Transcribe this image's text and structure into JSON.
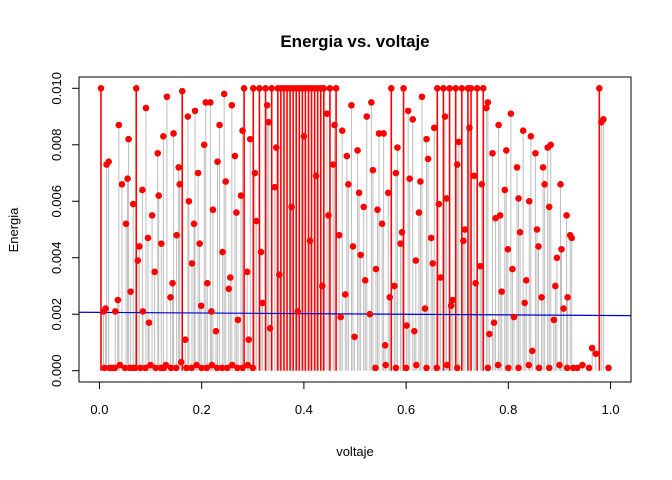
{
  "chart_data": {
    "type": "scatter",
    "title": "Energia vs. voltaje",
    "xlabel": "voltaje",
    "ylabel": "Energia",
    "xlim": [
      -0.04,
      1.04
    ],
    "ylim": [
      -0.0004,
      0.0104
    ],
    "x_ticks": [
      "0.0",
      "0.2",
      "0.4",
      "0.6",
      "0.8",
      "1.0"
    ],
    "y_ticks": [
      "0.000",
      "0.002",
      "0.004",
      "0.006",
      "0.008",
      "0.010"
    ],
    "grid": false,
    "legend": "none",
    "point_color": "#ff0000",
    "stem_color": "#bebebe",
    "saturated_stem_color": "#ff0000",
    "fit_line_color": "#0000cc",
    "fit_line": {
      "x": [
        -0.04,
        1.04
      ],
      "y": [
        0.00207,
        0.00195
      ]
    },
    "points": [
      [
        0.003,
        0.01
      ],
      [
        0.012,
        0.0022
      ],
      [
        0.014,
        0.0073
      ],
      [
        0.018,
        0.0074
      ],
      [
        0.025,
        0.0001
      ],
      [
        0.031,
        0.0021
      ],
      [
        0.038,
        0.0087
      ],
      [
        0.044,
        0.0066
      ],
      [
        0.052,
        0.0052
      ],
      [
        0.057,
        0.0082
      ],
      [
        0.061,
        0.0028
      ],
      [
        0.067,
        0.0001
      ],
      [
        0.072,
        0.01
      ],
      [
        0.078,
        0.0044
      ],
      [
        0.084,
        0.0064
      ],
      [
        0.091,
        0.0093
      ],
      [
        0.097,
        0.0017
      ],
      [
        0.103,
        0.0055
      ],
      [
        0.108,
        0.0035
      ],
      [
        0.114,
        0.0077
      ],
      [
        0.121,
        0.0045
      ],
      [
        0.126,
        0.0001
      ],
      [
        0.132,
        0.0097
      ],
      [
        0.139,
        0.0026
      ],
      [
        0.145,
        0.0084
      ],
      [
        0.151,
        0.0048
      ],
      [
        0.157,
        0.0066
      ],
      [
        0.162,
        0.0099
      ],
      [
        0.168,
        0.0011
      ],
      [
        0.175,
        0.006
      ],
      [
        0.181,
        0.0038
      ],
      [
        0.187,
        0.0092
      ],
      [
        0.193,
        0.007
      ],
      [
        0.199,
        0.0023
      ],
      [
        0.205,
        0.008
      ],
      [
        0.211,
        0.0031
      ],
      [
        0.217,
        0.0095
      ],
      [
        0.222,
        0.0057
      ],
      [
        0.228,
        0.0014
      ],
      [
        0.235,
        0.0087
      ],
      [
        0.241,
        0.0042
      ],
      [
        0.247,
        0.0067
      ],
      [
        0.253,
        0.0029
      ],
      [
        0.259,
        0.0094
      ],
      [
        0.265,
        0.0076
      ],
      [
        0.271,
        0.0018
      ],
      [
        0.277,
        0.0062
      ],
      [
        0.283,
        0.01
      ],
      [
        0.289,
        0.0035
      ],
      [
        0.295,
        0.0082
      ],
      [
        0.301,
        0.01
      ],
      [
        0.307,
        0.0053
      ],
      [
        0.313,
        0.01
      ],
      [
        0.319,
        0.0024
      ],
      [
        0.325,
        0.01
      ],
      [
        0.331,
        0.0088
      ],
      [
        0.337,
        0.01
      ],
      [
        0.343,
        0.0065
      ],
      [
        0.349,
        0.01
      ],
      [
        0.355,
        0.01
      ],
      [
        0.361,
        0.01
      ],
      [
        0.367,
        0.01
      ],
      [
        0.373,
        0.01
      ],
      [
        0.379,
        0.01
      ],
      [
        0.385,
        0.01
      ],
      [
        0.391,
        0.01
      ],
      [
        0.397,
        0.01
      ],
      [
        0.403,
        0.01
      ],
      [
        0.409,
        0.01
      ],
      [
        0.415,
        0.01
      ],
      [
        0.421,
        0.01
      ],
      [
        0.427,
        0.01
      ],
      [
        0.433,
        0.01
      ],
      [
        0.439,
        0.01
      ],
      [
        0.445,
        0.0091
      ],
      [
        0.451,
        0.01
      ],
      [
        0.457,
        0.0073
      ],
      [
        0.463,
        0.01
      ],
      [
        0.469,
        0.0048
      ],
      [
        0.475,
        0.0085
      ],
      [
        0.481,
        0.0027
      ],
      [
        0.487,
        0.0066
      ],
      [
        0.493,
        0.0094
      ],
      [
        0.499,
        0.0012
      ],
      [
        0.505,
        0.0078
      ],
      [
        0.511,
        0.0041
      ],
      [
        0.517,
        0.0058
      ],
      [
        0.523,
        0.009
      ],
      [
        0.529,
        0.002
      ],
      [
        0.535,
        0.0071
      ],
      [
        0.541,
        0.0036
      ],
      [
        0.547,
        0.0084
      ],
      [
        0.553,
        0.0052
      ],
      [
        0.559,
        0.0009
      ],
      [
        0.565,
        0.0063
      ],
      [
        0.571,
        0.01
      ],
      [
        0.577,
        0.003
      ],
      [
        0.583,
        0.0079
      ],
      [
        0.589,
        0.0045
      ],
      [
        0.595,
        0.01
      ],
      [
        0.601,
        0.0016
      ],
      [
        0.607,
        0.0068
      ],
      [
        0.613,
        0.0089
      ],
      [
        0.619,
        0.0039
      ],
      [
        0.625,
        0.0056
      ],
      [
        0.631,
        0.0097
      ],
      [
        0.637,
        0.0022
      ],
      [
        0.643,
        0.0075
      ],
      [
        0.649,
        0.0047
      ],
      [
        0.655,
        0.0086
      ],
      [
        0.661,
        0.01
      ],
      [
        0.667,
        0.0033
      ],
      [
        0.673,
        0.01
      ],
      [
        0.679,
        0.0061
      ],
      [
        0.685,
        0.01
      ],
      [
        0.691,
        0.0025
      ],
      [
        0.697,
        0.01
      ],
      [
        0.703,
        0.0081
      ],
      [
        0.709,
        0.01
      ],
      [
        0.715,
        0.005
      ],
      [
        0.721,
        0.01
      ],
      [
        0.727,
        0.01
      ],
      [
        0.733,
        0.0069
      ],
      [
        0.739,
        0.01
      ],
      [
        0.745,
        0.0037
      ],
      [
        0.751,
        0.01
      ],
      [
        0.757,
        0.0093
      ],
      [
        0.763,
        0.0013
      ],
      [
        0.769,
        0.0077
      ],
      [
        0.775,
        0.0054
      ],
      [
        0.781,
        0.0087
      ],
      [
        0.787,
        0.0028
      ],
      [
        0.793,
        0.0064
      ],
      [
        0.799,
        0.0043
      ],
      [
        0.805,
        0.0091
      ],
      [
        0.811,
        0.0019
      ],
      [
        0.817,
        0.0072
      ],
      [
        0.823,
        0.0049
      ],
      [
        0.829,
        0.0085
      ],
      [
        0.835,
        0.0032
      ],
      [
        0.841,
        0.006
      ],
      [
        0.847,
        0.0007
      ],
      [
        0.853,
        0.0077
      ],
      [
        0.859,
        0.0044
      ],
      [
        0.865,
        0.0026
      ],
      [
        0.871,
        0.0066
      ],
      [
        0.877,
        0.0079
      ],
      [
        0.883,
        0.008
      ],
      [
        0.889,
        0.0018
      ],
      [
        0.895,
        0.004
      ],
      [
        0.902,
        0.0066
      ],
      [
        0.908,
        0.0022
      ],
      [
        0.914,
        0.0055
      ],
      [
        0.921,
        0.0048
      ],
      [
        0.927,
        0.0001
      ],
      [
        0.935,
        0.0001
      ],
      [
        0.945,
        0.0002
      ],
      [
        0.958,
        0.0001
      ],
      [
        0.964,
        0.0008
      ],
      [
        0.971,
        0.0006
      ],
      [
        0.978,
        0.01
      ],
      [
        0.982,
        0.0088
      ],
      [
        0.986,
        0.0089
      ],
      [
        0.996,
        0.0001
      ],
      [
        0.01,
        0.0001
      ],
      [
        0.02,
        0.0001
      ],
      [
        0.03,
        0.0001
      ],
      [
        0.04,
        0.0002
      ],
      [
        0.05,
        0.0001
      ],
      [
        0.06,
        0.0001
      ],
      [
        0.07,
        0.0001
      ],
      [
        0.08,
        0.0001
      ],
      [
        0.09,
        0.0001
      ],
      [
        0.1,
        0.0002
      ],
      [
        0.11,
        0.0001
      ],
      [
        0.12,
        0.0001
      ],
      [
        0.13,
        0.0002
      ],
      [
        0.14,
        0.0001
      ],
      [
        0.15,
        0.0001
      ],
      [
        0.16,
        0.0003
      ],
      [
        0.17,
        0.0001
      ],
      [
        0.18,
        0.0001
      ],
      [
        0.19,
        0.0002
      ],
      [
        0.2,
        0.0001
      ],
      [
        0.21,
        0.0001
      ],
      [
        0.22,
        0.0002
      ],
      [
        0.23,
        0.0001
      ],
      [
        0.24,
        0.0001
      ],
      [
        0.25,
        0.0001
      ],
      [
        0.26,
        0.0002
      ],
      [
        0.27,
        0.0001
      ],
      [
        0.28,
        0.0001
      ],
      [
        0.29,
        0.0002
      ],
      [
        0.3,
        0.0001
      ],
      [
        0.54,
        0.0001
      ],
      [
        0.56,
        0.0002
      ],
      [
        0.58,
        0.0001
      ],
      [
        0.6,
        0.0001
      ],
      [
        0.62,
        0.0002
      ],
      [
        0.64,
        0.0001
      ],
      [
        0.66,
        0.0001
      ],
      [
        0.68,
        0.0002
      ],
      [
        0.7,
        0.0001
      ],
      [
        0.76,
        0.0001
      ],
      [
        0.78,
        0.0002
      ],
      [
        0.8,
        0.0001
      ],
      [
        0.82,
        0.0001
      ],
      [
        0.84,
        0.0002
      ],
      [
        0.86,
        0.0001
      ],
      [
        0.88,
        0.0001
      ],
      [
        0.9,
        0.0002
      ],
      [
        0.915,
        0.0001
      ],
      [
        0.008,
        0.0021
      ],
      [
        0.036,
        0.0025
      ],
      [
        0.055,
        0.0068
      ],
      [
        0.066,
        0.0059
      ],
      [
        0.075,
        0.0039
      ],
      [
        0.085,
        0.0021
      ],
      [
        0.095,
        0.0047
      ],
      [
        0.116,
        0.0062
      ],
      [
        0.125,
        0.0083
      ],
      [
        0.143,
        0.0031
      ],
      [
        0.155,
        0.0072
      ],
      [
        0.173,
        0.009
      ],
      [
        0.185,
        0.0052
      ],
      [
        0.196,
        0.0045
      ],
      [
        0.208,
        0.0095
      ],
      [
        0.219,
        0.0021
      ],
      [
        0.231,
        0.0074
      ],
      [
        0.244,
        0.0098
      ],
      [
        0.256,
        0.0033
      ],
      [
        0.268,
        0.0056
      ],
      [
        0.28,
        0.0085
      ],
      [
        0.292,
        0.0011
      ],
      [
        0.304,
        0.007
      ],
      [
        0.316,
        0.0042
      ],
      [
        0.328,
        0.0094
      ],
      [
        0.334,
        0.0015
      ],
      [
        0.346,
        0.0079
      ],
      [
        0.352,
        0.0034
      ],
      [
        0.376,
        0.0058
      ],
      [
        0.388,
        0.0021
      ],
      [
        0.4,
        0.0083
      ],
      [
        0.412,
        0.0046
      ],
      [
        0.424,
        0.0069
      ],
      [
        0.436,
        0.003
      ],
      [
        0.448,
        0.0055
      ],
      [
        0.46,
        0.0087
      ],
      [
        0.472,
        0.0019
      ],
      [
        0.484,
        0.0076
      ],
      [
        0.496,
        0.0044
      ],
      [
        0.508,
        0.0063
      ],
      [
        0.52,
        0.0032
      ],
      [
        0.532,
        0.0095
      ],
      [
        0.544,
        0.0057
      ],
      [
        0.556,
        0.0084
      ],
      [
        0.568,
        0.0026
      ],
      [
        0.58,
        0.007
      ],
      [
        0.592,
        0.0049
      ],
      [
        0.604,
        0.0092
      ],
      [
        0.616,
        0.0014
      ],
      [
        0.628,
        0.0067
      ],
      [
        0.64,
        0.0082
      ],
      [
        0.652,
        0.0038
      ],
      [
        0.664,
        0.0059
      ],
      [
        0.676,
        0.009
      ],
      [
        0.688,
        0.0023
      ],
      [
        0.7,
        0.0073
      ],
      [
        0.712,
        0.0046
      ],
      [
        0.724,
        0.0086
      ],
      [
        0.736,
        0.0031
      ],
      [
        0.748,
        0.0066
      ],
      [
        0.76,
        0.0095
      ],
      [
        0.772,
        0.0017
      ],
      [
        0.784,
        0.0055
      ],
      [
        0.796,
        0.0078
      ],
      [
        0.808,
        0.0036
      ],
      [
        0.82,
        0.0061
      ],
      [
        0.832,
        0.0024
      ],
      [
        0.844,
        0.0083
      ],
      [
        0.856,
        0.005
      ],
      [
        0.868,
        0.0072
      ],
      [
        0.88,
        0.0058
      ],
      [
        0.892,
        0.003
      ],
      [
        0.904,
        0.0043
      ],
      [
        0.916,
        0.0026
      ],
      [
        0.924,
        0.0047
      ]
    ]
  }
}
